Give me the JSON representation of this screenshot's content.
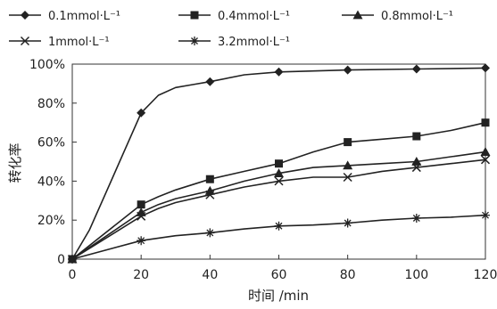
{
  "chart_data": {
    "type": "line",
    "xlabel": "时间 /min",
    "ylabel": "转化率",
    "xlim": [
      0,
      120
    ],
    "ylim": [
      0,
      100
    ],
    "x_ticks": [
      0,
      20,
      40,
      60,
      80,
      100,
      120
    ],
    "y_ticks": [
      "0",
      "20%",
      "40%",
      "60%",
      "80%",
      "100%"
    ],
    "legend_placement": "top",
    "grid": false,
    "series": [
      {
        "name": "0.1mmol·L⁻¹",
        "marker": "diamond",
        "points": [
          [
            0,
            0
          ],
          [
            20,
            75
          ],
          [
            40,
            91
          ],
          [
            60,
            96
          ],
          [
            80,
            97
          ],
          [
            100,
            97.5
          ],
          [
            120,
            98
          ]
        ],
        "curve": [
          [
            0,
            0
          ],
          [
            5,
            15
          ],
          [
            10,
            35
          ],
          [
            15,
            55
          ],
          [
            20,
            75
          ],
          [
            25,
            84
          ],
          [
            30,
            88
          ],
          [
            35,
            89.5
          ],
          [
            40,
            91
          ],
          [
            50,
            94.5
          ],
          [
            60,
            96
          ],
          [
            80,
            97
          ],
          [
            100,
            97.5
          ],
          [
            120,
            98
          ]
        ]
      },
      {
        "name": "0.4mmol·L⁻¹",
        "marker": "square",
        "points": [
          [
            0,
            0
          ],
          [
            20,
            28
          ],
          [
            40,
            41
          ],
          [
            60,
            49
          ],
          [
            80,
            60
          ],
          [
            100,
            63
          ],
          [
            120,
            70
          ]
        ],
        "curve": [
          [
            0,
            0
          ],
          [
            20,
            28
          ],
          [
            25,
            32
          ],
          [
            30,
            35.5
          ],
          [
            40,
            41
          ],
          [
            50,
            45
          ],
          [
            60,
            49
          ],
          [
            70,
            55
          ],
          [
            80,
            60
          ],
          [
            90,
            61.5
          ],
          [
            100,
            63
          ],
          [
            110,
            66
          ],
          [
            120,
            70
          ]
        ]
      },
      {
        "name": "0.8mmol·L⁻¹",
        "marker": "triangle",
        "points": [
          [
            0,
            0
          ],
          [
            20,
            24
          ],
          [
            40,
            35
          ],
          [
            60,
            44
          ],
          [
            80,
            48
          ],
          [
            100,
            50
          ],
          [
            120,
            55
          ]
        ],
        "curve": [
          [
            0,
            0
          ],
          [
            20,
            24
          ],
          [
            25,
            28
          ],
          [
            30,
            31
          ],
          [
            40,
            35
          ],
          [
            50,
            40
          ],
          [
            60,
            44
          ],
          [
            70,
            47
          ],
          [
            80,
            48
          ],
          [
            90,
            49
          ],
          [
            100,
            50
          ],
          [
            110,
            52.5
          ],
          [
            120,
            55
          ]
        ]
      },
      {
        "name": "1mmol·L⁻¹",
        "marker": "x",
        "points": [
          [
            0,
            0
          ],
          [
            20,
            22
          ],
          [
            40,
            33
          ],
          [
            60,
            40
          ],
          [
            80,
            42
          ],
          [
            100,
            47
          ],
          [
            120,
            51
          ]
        ],
        "curve": [
          [
            0,
            0
          ],
          [
            20,
            22
          ],
          [
            25,
            26
          ],
          [
            30,
            29
          ],
          [
            40,
            33
          ],
          [
            50,
            37
          ],
          [
            60,
            40
          ],
          [
            70,
            42
          ],
          [
            80,
            42
          ],
          [
            90,
            45
          ],
          [
            100,
            47
          ],
          [
            110,
            49
          ],
          [
            120,
            51
          ]
        ]
      },
      {
        "name": "3.2mmol·L⁻¹",
        "marker": "asterisk",
        "points": [
          [
            0,
            0
          ],
          [
            20,
            9.5
          ],
          [
            40,
            13.5
          ],
          [
            60,
            17
          ],
          [
            80,
            18.5
          ],
          [
            100,
            21
          ],
          [
            120,
            22.5
          ]
        ],
        "curve": [
          [
            0,
            0
          ],
          [
            20,
            9.5
          ],
          [
            30,
            12
          ],
          [
            40,
            13.5
          ],
          [
            50,
            15.5
          ],
          [
            60,
            17
          ],
          [
            70,
            17.5
          ],
          [
            80,
            18.5
          ],
          [
            90,
            20
          ],
          [
            100,
            21
          ],
          [
            110,
            21.5
          ],
          [
            120,
            22.5
          ]
        ]
      }
    ]
  }
}
